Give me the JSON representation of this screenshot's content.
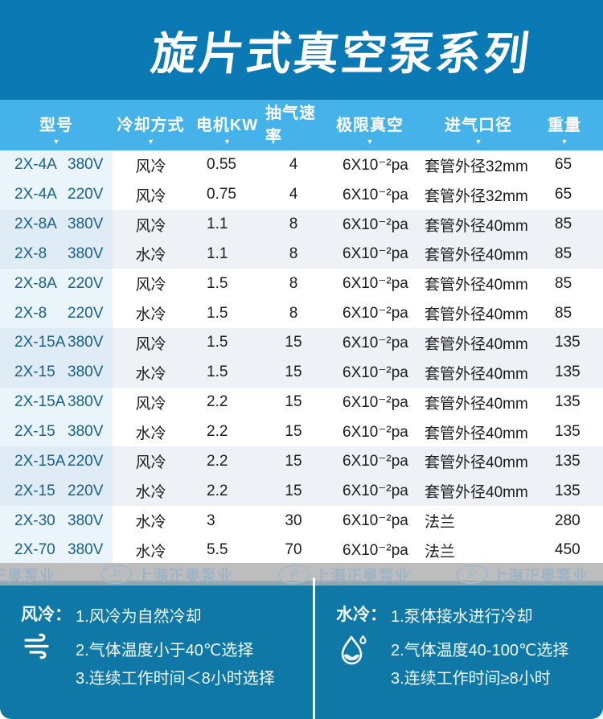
{
  "title": "旋片式真空泵系列",
  "colors": {
    "top_band": "#0b79b3",
    "table_header": "#45b3ea",
    "model_text": "#1a5f88",
    "shade_row": "#eef1f5",
    "model_cell": "#eaf4fb",
    "footer_bg": "#0f78a7",
    "watermark_band": "#b0b0b0",
    "watermark_text": "#9db4c6"
  },
  "table": {
    "columns": [
      {
        "key": "model",
        "label": "型号"
      },
      {
        "key": "cooling",
        "label": "冷却方式"
      },
      {
        "key": "kw",
        "label": "电机KW"
      },
      {
        "key": "rate",
        "label": "抽气速率"
      },
      {
        "key": "vacuum",
        "label": "极限真空"
      },
      {
        "key": "inlet",
        "label": "进气口径"
      },
      {
        "key": "weight",
        "label": "重量"
      }
    ],
    "sort_icon": "▼",
    "rows": [
      {
        "model": "2X-4A",
        "voltage": "380V",
        "cooling": "风冷",
        "kw": "0.55",
        "rate": "4",
        "vacuum": "6X10⁻²pa",
        "inlet": "套管外径32mm",
        "weight": "65",
        "shade": false
      },
      {
        "model": "2X-4A",
        "voltage": "220V",
        "cooling": "风冷",
        "kw": "0.75",
        "rate": "4",
        "vacuum": "6X10⁻²pa",
        "inlet": "套管外径32mm",
        "weight": "65",
        "shade": false
      },
      {
        "model": "2X-8A",
        "voltage": "380V",
        "cooling": "风冷",
        "kw": "1.1",
        "rate": "8",
        "vacuum": "6X10⁻²pa",
        "inlet": "套管外径40mm",
        "weight": "85",
        "shade": true
      },
      {
        "model": "2X-8",
        "voltage": "380V",
        "cooling": "水冷",
        "kw": "1.1",
        "rate": "8",
        "vacuum": "6X10⁻²pa",
        "inlet": "套管外径40mm",
        "weight": "85",
        "shade": true
      },
      {
        "model": "2X-8A",
        "voltage": "220V",
        "cooling": "风冷",
        "kw": "1.5",
        "rate": "8",
        "vacuum": "6X10⁻²pa",
        "inlet": "套管外径40mm",
        "weight": "85",
        "shade": false
      },
      {
        "model": "2X-8",
        "voltage": "220V",
        "cooling": "水冷",
        "kw": "1.5",
        "rate": "8",
        "vacuum": "6X10⁻²pa",
        "inlet": "套管外径40mm",
        "weight": "85",
        "shade": false
      },
      {
        "model": "2X-15A",
        "voltage": "380V",
        "cooling": "风冷",
        "kw": "1.5",
        "rate": "15",
        "vacuum": "6X10⁻²pa",
        "inlet": "套管外径40mm",
        "weight": "135",
        "shade": true
      },
      {
        "model": "2X-15",
        "voltage": "380V",
        "cooling": "水冷",
        "kw": "1.5",
        "rate": "15",
        "vacuum": "6X10⁻²pa",
        "inlet": "套管外径40mm",
        "weight": "135",
        "shade": true
      },
      {
        "model": "2X-15A",
        "voltage": "380V",
        "cooling": "风冷",
        "kw": "2.2",
        "rate": "15",
        "vacuum": "6X10⁻²pa",
        "inlet": "套管外径40mm",
        "weight": "135",
        "shade": false
      },
      {
        "model": "2X-15",
        "voltage": "380V",
        "cooling": "水冷",
        "kw": "2.2",
        "rate": "15",
        "vacuum": "6X10⁻²pa",
        "inlet": "套管外径40mm",
        "weight": "135",
        "shade": false
      },
      {
        "model": "2X-15A",
        "voltage": "220V",
        "cooling": "风冷",
        "kw": "2.2",
        "rate": "15",
        "vacuum": "6X10⁻²pa",
        "inlet": "套管外径40mm",
        "weight": "135",
        "shade": true
      },
      {
        "model": "2X-15",
        "voltage": "220V",
        "cooling": "水冷",
        "kw": "2.2",
        "rate": "15",
        "vacuum": "6X10⁻²pa",
        "inlet": "套管外径40mm",
        "weight": "135",
        "shade": true
      },
      {
        "model": "2X-30",
        "voltage": "380V",
        "cooling": "水冷",
        "kw": "3",
        "rate": "30",
        "vacuum": "6X10⁻²pa",
        "inlet": "法兰",
        "weight": "280",
        "shade": false
      },
      {
        "model": "2X-70",
        "voltage": "380V",
        "cooling": "水冷",
        "kw": "5.5",
        "rate": "70",
        "vacuum": "6X10⁻²pa",
        "inlet": "法兰",
        "weight": "450",
        "shade": false
      }
    ]
  },
  "watermark": {
    "logo_letter": "P",
    "text": "上海正奥泵业",
    "repeat": 4
  },
  "footer": {
    "left": {
      "label": "风冷：",
      "icon": "wind-icon",
      "items": [
        "1.风冷为自然冷却",
        "2.气体温度小于40℃选择",
        "3.连续工作时间＜8小时选择"
      ]
    },
    "right": {
      "label": "水冷：",
      "icon": "water-drop-icon",
      "items": [
        "1.泵体接水进行冷却",
        "2.气体温度40-100℃选择",
        "3.连续工作时间≥8小时"
      ]
    }
  }
}
